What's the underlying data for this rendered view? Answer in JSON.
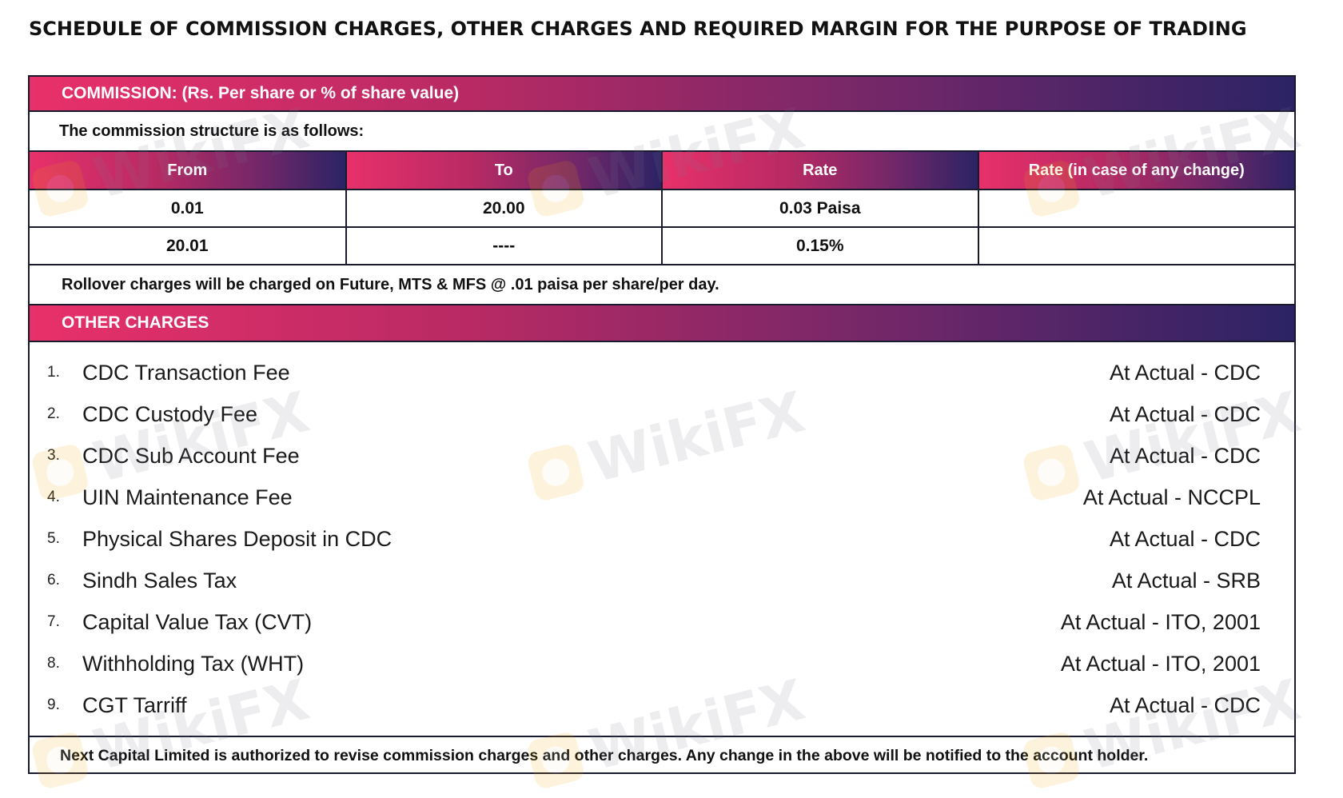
{
  "title": "SCHEDULE OF COMMISSION CHARGES, OTHER CHARGES AND REQUIRED MARGIN FOR THE PURPOSE OF TRADING",
  "commission": {
    "header": "COMMISSION: (Rs. Per share or % of share value)",
    "intro": "The commission structure is as follows:",
    "columns": [
      "From",
      "To",
      "Rate",
      "Rate (in case of any change)"
    ],
    "rows": [
      [
        "0.01",
        "20.00",
        "0.03 Paisa",
        ""
      ],
      [
        "20.01",
        "----",
        "0.15%",
        ""
      ]
    ],
    "rollover": "Rollover charges will be charged on Future, MTS & MFS @ .01 paisa per share/per day."
  },
  "other_charges": {
    "header": "OTHER CHARGES",
    "items": [
      {
        "num": "1.",
        "name": "CDC Transaction Fee",
        "value": "At Actual - CDC"
      },
      {
        "num": "2.",
        "name": "CDC Custody Fee",
        "value": "At Actual - CDC"
      },
      {
        "num": "3.",
        "name": "CDC Sub Account Fee",
        "value": "At Actual - CDC"
      },
      {
        "num": "4.",
        "name": "UIN Maintenance Fee",
        "value": "At Actual - NCCPL"
      },
      {
        "num": "5.",
        "name": "Physical Shares Deposit in CDC",
        "value": "At Actual - CDC"
      },
      {
        "num": "6.",
        "name": "Sindh Sales Tax",
        "value": "At Actual - SRB"
      },
      {
        "num": "7.",
        "name": "Capital Value Tax (CVT)",
        "value": "At Actual - ITO, 2001"
      },
      {
        "num": "8.",
        "name": "Withholding Tax (WHT)",
        "value": "At Actual - ITO, 2001"
      },
      {
        "num": "9.",
        "name": "CGT Tarriff",
        "value": "At Actual - CDC"
      }
    ]
  },
  "footer": "Next Capital Limited is authorized to revise commission charges and other charges. Any change in the above will be notified to the account holder.",
  "watermark": "WikiFX",
  "colors": {
    "gradient_start": "#e8306a",
    "gradient_end": "#2b2365",
    "border": "#1a1a2e",
    "watermark_logo": "#f2a900"
  }
}
